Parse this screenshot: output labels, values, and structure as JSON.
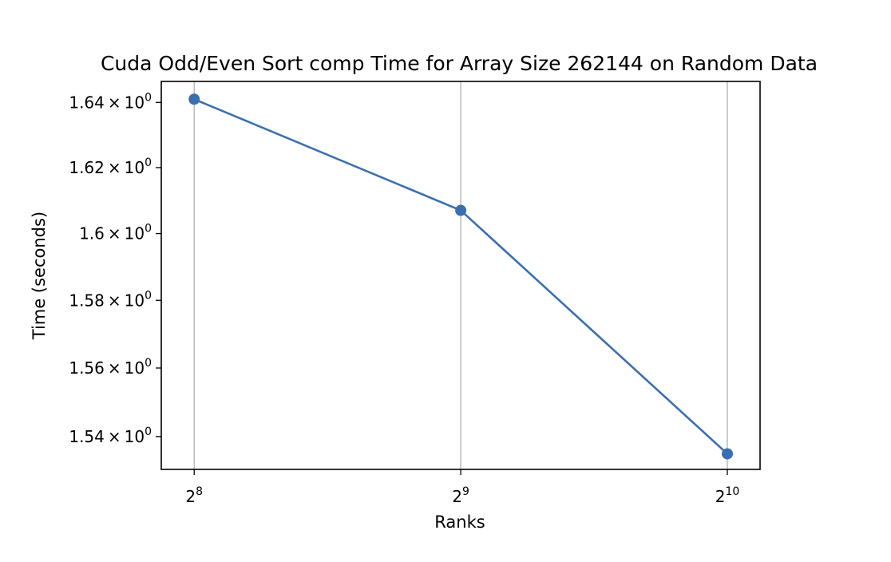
{
  "chart_data": {
    "type": "line",
    "title": "Cuda Odd/Even Sort comp Time for Array Size 262144 on Random Data",
    "xlabel": "Ranks",
    "ylabel": "Time (seconds)",
    "x_scale": "log2",
    "y_scale": "log",
    "x_ticks": [
      {
        "value": 256,
        "base": "2",
        "exp": "8"
      },
      {
        "value": 512,
        "base": "2",
        "exp": "9"
      },
      {
        "value": 1024,
        "base": "2",
        "exp": "10"
      }
    ],
    "y_ticks": [
      {
        "value": 1.54,
        "mant": "1.54",
        "base": "10",
        "exp": "0"
      },
      {
        "value": 1.56,
        "mant": "1.56",
        "base": "10",
        "exp": "0"
      },
      {
        "value": 1.58,
        "mant": "1.58",
        "base": "10",
        "exp": "0"
      },
      {
        "value": 1.6,
        "mant": "1.6",
        "base": "10",
        "exp": "0"
      },
      {
        "value": 1.62,
        "mant": "1.62",
        "base": "10",
        "exp": "0"
      },
      {
        "value": 1.64,
        "mant": "1.64",
        "base": "10",
        "exp": "0"
      }
    ],
    "xlim": [
      235,
      1115
    ],
    "ylim": [
      1.5305,
      1.6465
    ],
    "grid": "x-major",
    "series": [
      {
        "color": "#3a6faf",
        "marker": "circle",
        "x": [
          256,
          512,
          1024
        ],
        "y": [
          1.641,
          1.607,
          1.535
        ]
      }
    ]
  }
}
